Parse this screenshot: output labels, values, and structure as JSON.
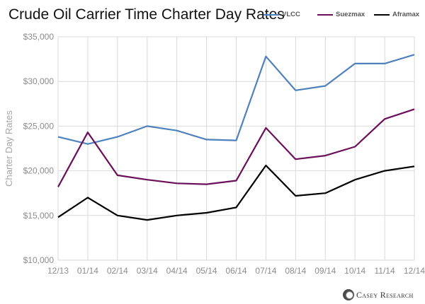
{
  "title": "Crude Oil Carrier Time Charter Day Rates",
  "logo": {
    "text": "Casey Research"
  },
  "colors": {
    "VLCC": "#4f81bd",
    "Suezmax": "#6b0f5a",
    "Aframax": "#000000",
    "grid": "#d9d9d9",
    "tick": "#8c8c8c"
  },
  "chart_data": {
    "type": "line",
    "title": "Crude Oil Carrier Time Charter Day Rates",
    "xlabel": "",
    "ylabel": "Charter Day Rates",
    "categories": [
      "12/13",
      "01/14",
      "02/14",
      "03/14",
      "04/14",
      "05/14",
      "06/14",
      "07/14",
      "08/14",
      "09/14",
      "10/14",
      "11/14",
      "12/14"
    ],
    "ylim": [
      10000,
      35000
    ],
    "yticks": [
      10000,
      15000,
      20000,
      25000,
      30000,
      35000
    ],
    "ytick_labels": [
      "$10,000",
      "$15,000",
      "$20,000",
      "$25,000",
      "$30,000",
      "$35,000"
    ],
    "grid": true,
    "legend_position": "top-right",
    "series": [
      {
        "name": "VLCC",
        "values": [
          23800,
          23000,
          23800,
          25000,
          24500,
          23500,
          23400,
          32800,
          29000,
          29500,
          32000,
          32000,
          33000
        ]
      },
      {
        "name": "Suezmax",
        "values": [
          18200,
          24300,
          19500,
          19000,
          18600,
          18500,
          18900,
          24800,
          21300,
          21700,
          22700,
          25800,
          26900
        ]
      },
      {
        "name": "Aframax",
        "values": [
          14800,
          17000,
          15000,
          14500,
          15000,
          15300,
          15900,
          20600,
          17200,
          17500,
          19000,
          20000,
          20500
        ]
      }
    ]
  }
}
